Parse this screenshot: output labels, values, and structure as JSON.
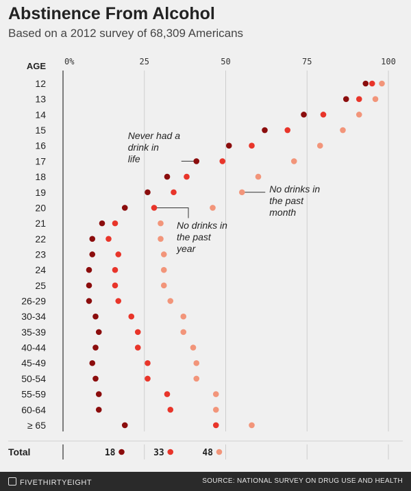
{
  "header": {
    "title": "Abstinence From Alcohol",
    "subtitle": "Based on a 2012 survey of 68,309 Americans"
  },
  "footer": {
    "brand": "FIVETHIRTYEIGHT",
    "source": "SOURCE: NATIONAL SURVEY ON DRUG USE AND HEALTH"
  },
  "colors": {
    "never": "#8b0d0d",
    "past_year": "#e8352a",
    "past_month": "#f2957a"
  },
  "chart_data": {
    "type": "dot",
    "title": "Abstinence From Alcohol",
    "subtitle": "Based on a 2012 survey of 68,309 Americans",
    "ylabel": "AGE",
    "xlim": [
      0,
      100
    ],
    "x_ticks": [
      "0%",
      "25",
      "50",
      "75",
      "100"
    ],
    "categories": [
      "12",
      "13",
      "14",
      "15",
      "16",
      "17",
      "18",
      "19",
      "20",
      "21",
      "22",
      "23",
      "24",
      "25",
      "26-29",
      "30-34",
      "35-39",
      "40-44",
      "45-49",
      "50-54",
      "55-59",
      "60-64",
      "≥ 65"
    ],
    "series": [
      {
        "name": "Never had a drink in life",
        "color": "#8b0d0d",
        "values": [
          93,
          87,
          74,
          62,
          51,
          41,
          32,
          26,
          19,
          12,
          9,
          9,
          8,
          8,
          8,
          10,
          11,
          10,
          9,
          10,
          11,
          11,
          19
        ]
      },
      {
        "name": "No drinks in the past year",
        "color": "#e8352a",
        "values": [
          95,
          91,
          80,
          69,
          58,
          49,
          38,
          34,
          28,
          16,
          14,
          17,
          16,
          16,
          17,
          21,
          23,
          23,
          26,
          26,
          32,
          33,
          47
        ]
      },
      {
        "name": "No drinks in the past month",
        "color": "#f2957a",
        "values": [
          98,
          96,
          91,
          86,
          79,
          71,
          60,
          55,
          46,
          30,
          30,
          31,
          31,
          31,
          33,
          37,
          37,
          40,
          41,
          41,
          47,
          47,
          58
        ]
      }
    ],
    "annotations": [
      {
        "text": "Never had a drink in life",
        "series": 0,
        "category": "17"
      },
      {
        "text": "No drinks in the past month",
        "series": 2,
        "category": "19"
      },
      {
        "text": "No drinks in the past year",
        "series": 1,
        "category": "20"
      }
    ],
    "total": {
      "label": "Total",
      "values": [
        18,
        33,
        48
      ]
    }
  }
}
